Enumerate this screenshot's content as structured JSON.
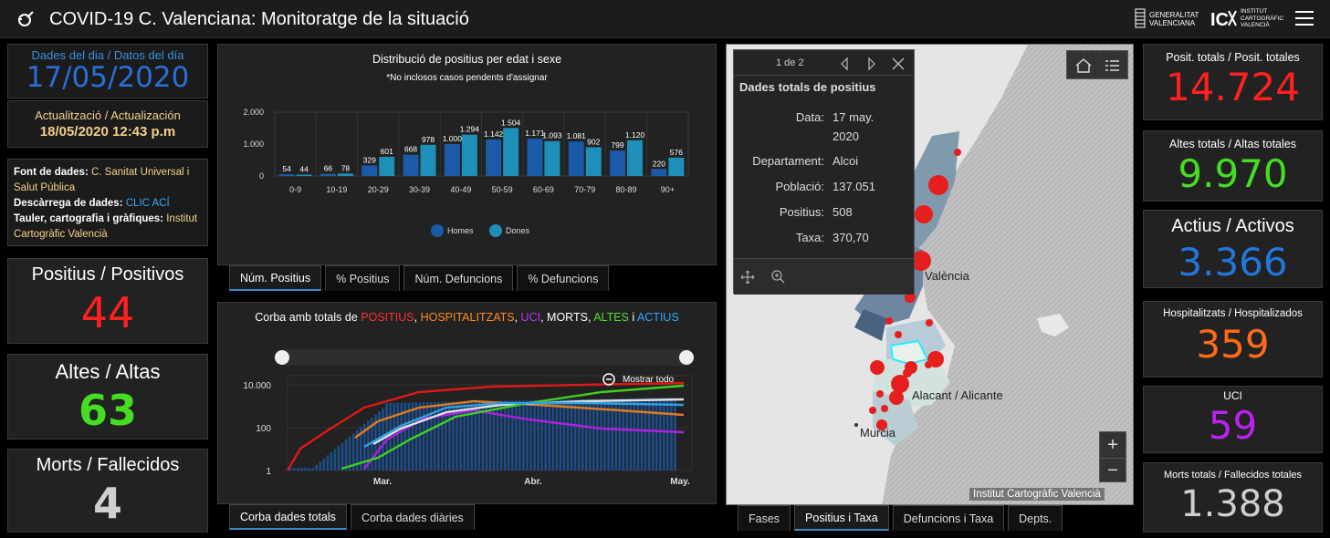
{
  "header": {
    "title": "COVID-19 C. Valenciana: Monitoratge de la situació",
    "gva_line1": "GENERALITAT",
    "gva_line2": "VALENCIANA",
    "icv_line1": "INSTITUT",
    "icv_line2": "CARTOGRÀFIC",
    "icv_line3": "VALENCIÀ"
  },
  "left": {
    "date_label": "Dades del dia / Datos del día",
    "date": "17/05/2020",
    "update_label": "Actualització / Actualización",
    "update": "18/05/2020 12:43 p.m",
    "source_k": "Font de dades:",
    "source_v": "C. Sanitat Universal i Salut Pública",
    "download_k": "Descàrrega de dades:",
    "download_v": "CLIC ACÍ",
    "board_k": "Tauler, cartografia i gràfiques:",
    "board_v": "Institut Cartogràfic Valencià",
    "pos_label": "Positius / Positivos",
    "pos_value": "44",
    "altes_label": "Altes / Altas",
    "altes_value": "63",
    "morts_label": "Morts / Fallecidos",
    "morts_value": "4"
  },
  "age_chart": {
    "title": "Distribució de positius per edat i sexe",
    "subtitle": "*No inclosos casos pendents d'assignar",
    "legend_m": "Homes",
    "legend_f": "Dones",
    "yticks": [
      "2.000",
      "1.000",
      "0"
    ]
  },
  "chart_data": [
    {
      "type": "bar",
      "title": "Distribució de positius per edat i sexe",
      "categories": [
        "0-9",
        "10-19",
        "20-29",
        "30-39",
        "40-49",
        "50-59",
        "60-69",
        "70-79",
        "80-89",
        "90+"
      ],
      "series": [
        {
          "name": "Homes",
          "values": [
            54,
            66,
            329,
            668,
            1000,
            1142,
            1171,
            1081,
            799,
            220
          ],
          "labels": [
            "54",
            "66",
            "329",
            "668",
            "1.000",
            "1.142",
            "1.171",
            "1.081",
            "799",
            "220"
          ]
        },
        {
          "name": "Dones",
          "values": [
            44,
            78,
            601,
            978,
            1294,
            1504,
            1093,
            902,
            1120,
            576
          ],
          "labels": [
            "44",
            "78",
            "601",
            "978",
            "1.294",
            "1.504",
            "1.093",
            "902",
            "1.120",
            "576"
          ]
        }
      ],
      "ylim": [
        0,
        2000
      ],
      "colors": {
        "Homes": "#1a5aa8",
        "Dones": "#1e8fb8"
      }
    },
    {
      "type": "line",
      "title": "Corba amb totals de POSITIUS, HOSPITALITZATS, UCI, MORTS, ALTES i ACTIUS",
      "scale": "log",
      "yticks": [
        "10.000",
        "100",
        "1"
      ],
      "xticks": [
        "Mar.",
        "Abr.",
        "May."
      ],
      "series": [
        {
          "name": "POSITIUS",
          "color": "#e01818"
        },
        {
          "name": "HOSPITALITZATS",
          "color": "#e07a20"
        },
        {
          "name": "UCI",
          "color": "#b020e0"
        },
        {
          "name": "MORTS",
          "color": "#e0e0e0"
        },
        {
          "name": "ALTES",
          "color": "#40d020"
        },
        {
          "name": "ACTIUS",
          "color": "#30a0e0"
        }
      ]
    }
  ],
  "tabs1": [
    "Núm. Positius",
    "% Positius",
    "Núm. Defuncions",
    "% Defuncions"
  ],
  "curve": {
    "title_pre": "Corba amb totals de ",
    "pos": "POSITIUS",
    "hosp": "HOSPITALITZATS",
    "uci": "UCI",
    "morts": "MORTS",
    "altes": "ALTES",
    "i": " i ",
    "actius": "ACTIUS",
    "sep": ", ",
    "show_all": "Mostrar todo"
  },
  "tabs2": [
    "Corba dades totals",
    "Corba dades diàries"
  ],
  "map": {
    "pager": "1 de 2",
    "pop_title": "Dades totals de positius",
    "rows": [
      {
        "k": "Data:",
        "v": "17 may."
      },
      {
        "k": "",
        "v": "2020"
      },
      {
        "k": "Departament:",
        "v": "Alcoi"
      },
      {
        "k": "Població:",
        "v": "137.051"
      },
      {
        "k": "Positius:",
        "v": "508"
      },
      {
        "k": "Taxa:",
        "v": "370,70"
      }
    ],
    "city_valencia": "València",
    "city_alacant": "Alacant / Alicante",
    "city_murcia": "Murcia",
    "attribution": "Institut Cartogràfic Valencià",
    "zoom_in": "+",
    "zoom_out": "−"
  },
  "tabs3": [
    "Fases",
    "Positius i Taxa",
    "Defuncions i Taxa",
    "Depts."
  ],
  "right": {
    "pt_label": "Posit. totals / Posit. totales",
    "pt_value": "14.724",
    "at_label": "Altes totals / Altas totales",
    "at_value": "9.970",
    "act_label": "Actius / Activos",
    "act_value": "3.366",
    "hosp_label": "Hospitalitzats / Hospitalizados",
    "hosp_value": "359",
    "uci_label": "UCI",
    "uci_value": "59",
    "mt_label": "Morts totals / Fallecidos totales",
    "mt_value": "1.388"
  },
  "colors": {
    "red": "#ff2020",
    "green": "#44dd22",
    "blue": "#2277dd",
    "orange": "#ff6a1a",
    "purple": "#bb22ee",
    "grey": "#cfcfcf",
    "date": "#2a6fd6",
    "update": "#f2d28a",
    "link": "#33aaff"
  }
}
